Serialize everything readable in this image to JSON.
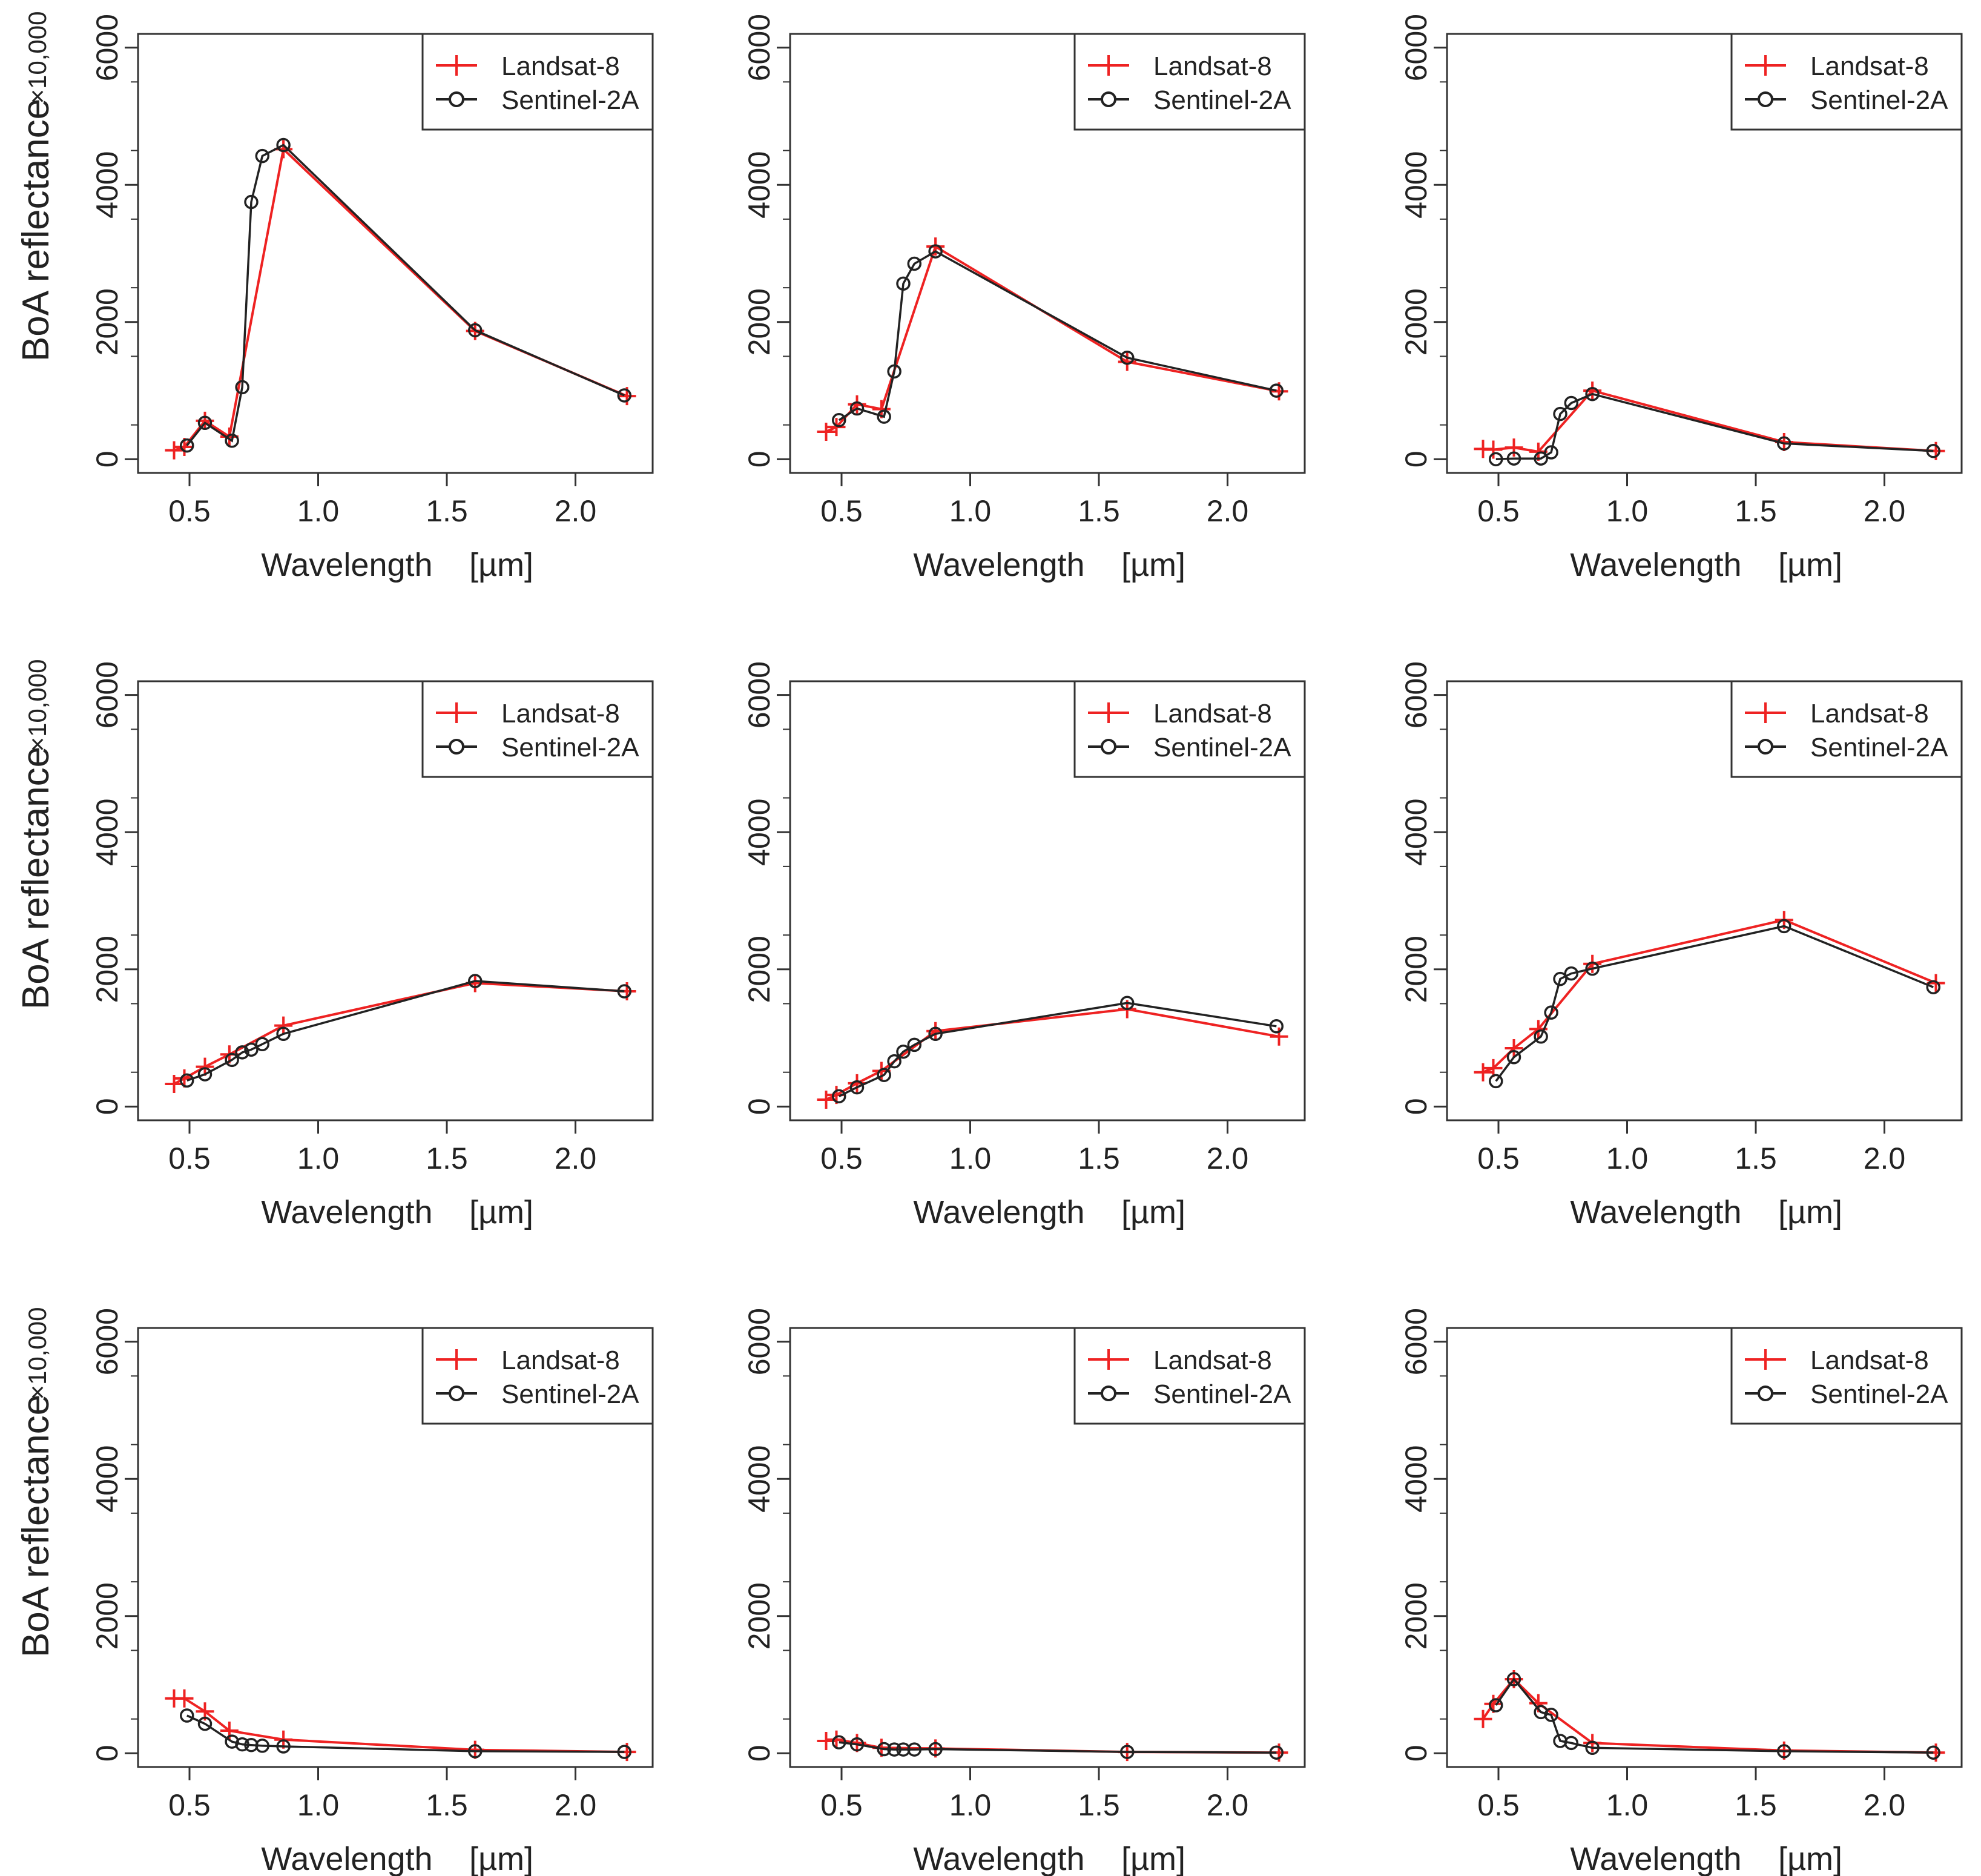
{
  "figure": {
    "ylabel": "BoA reflectance",
    "ylabel_scale": "×10,000",
    "xlabel": "Wavelength",
    "xlabel_unit": "[µm]",
    "legend_items": [
      "Landsat-8",
      "Sentinel-2A"
    ],
    "colors": {
      "landsat": "#ee2222",
      "sentinel": "#222222",
      "axis": "#333333"
    },
    "x_ticks": [
      0.5,
      1.0,
      1.5,
      2.0
    ],
    "x_tick_labels": [
      "0.5",
      "1.0",
      "1.5",
      "2.0"
    ],
    "y_ticks": [
      0,
      2000,
      4000,
      6000
    ],
    "y_tick_labels": [
      "0",
      "2000",
      "4000",
      "6000"
    ]
  },
  "chart_data": [
    {
      "type": "line",
      "xlim": [
        0.3,
        2.3
      ],
      "ylim": [
        -200,
        6200
      ],
      "series": [
        {
          "name": "Landsat-8",
          "x": [
            0.44,
            0.48,
            0.56,
            0.655,
            0.865,
            1.61,
            2.2
          ],
          "y": [
            130,
            180,
            560,
            330,
            4520,
            1870,
            920
          ]
        },
        {
          "name": "Sentinel-2A",
          "x": [
            0.49,
            0.56,
            0.665,
            0.705,
            0.74,
            0.783,
            0.865,
            1.61,
            2.19
          ],
          "y": [
            200,
            530,
            270,
            1050,
            3750,
            4420,
            4580,
            1880,
            930
          ]
        }
      ]
    },
    {
      "type": "line",
      "xlim": [
        0.3,
        2.3
      ],
      "ylim": [
        -200,
        6200
      ],
      "series": [
        {
          "name": "Landsat-8",
          "x": [
            0.44,
            0.48,
            0.56,
            0.655,
            0.865,
            1.61,
            2.2
          ],
          "y": [
            400,
            470,
            800,
            730,
            3100,
            1420,
            990
          ]
        },
        {
          "name": "Sentinel-2A",
          "x": [
            0.49,
            0.56,
            0.665,
            0.705,
            0.74,
            0.783,
            0.865,
            1.61,
            2.19
          ],
          "y": [
            570,
            740,
            620,
            1280,
            2560,
            2850,
            3030,
            1480,
            1000
          ]
        }
      ]
    },
    {
      "type": "line",
      "xlim": [
        0.3,
        2.3
      ],
      "ylim": [
        -200,
        6200
      ],
      "series": [
        {
          "name": "Landsat-8",
          "x": [
            0.44,
            0.48,
            0.56,
            0.655,
            0.865,
            1.61,
            2.2
          ],
          "y": [
            150,
            140,
            170,
            110,
            1000,
            250,
            120
          ]
        },
        {
          "name": "Sentinel-2A",
          "x": [
            0.49,
            0.56,
            0.665,
            0.705,
            0.74,
            0.783,
            0.865,
            1.61,
            2.19
          ],
          "y": [
            0,
            10,
            10,
            100,
            660,
            820,
            950,
            230,
            120
          ]
        }
      ]
    },
    {
      "type": "line",
      "xlim": [
        0.3,
        2.3
      ],
      "ylim": [
        -200,
        6200
      ],
      "series": [
        {
          "name": "Landsat-8",
          "x": [
            0.44,
            0.48,
            0.56,
            0.655,
            0.865,
            1.61,
            2.2
          ],
          "y": [
            330,
            410,
            580,
            760,
            1180,
            1800,
            1680
          ]
        },
        {
          "name": "Sentinel-2A",
          "x": [
            0.49,
            0.56,
            0.665,
            0.705,
            0.74,
            0.783,
            0.865,
            1.61,
            2.19
          ],
          "y": [
            380,
            470,
            680,
            790,
            830,
            910,
            1060,
            1830,
            1680
          ]
        }
      ]
    },
    {
      "type": "line",
      "xlim": [
        0.3,
        2.3
      ],
      "ylim": [
        -200,
        6200
      ],
      "series": [
        {
          "name": "Landsat-8",
          "x": [
            0.44,
            0.48,
            0.56,
            0.655,
            0.865,
            1.61,
            2.2
          ],
          "y": [
            100,
            170,
            340,
            520,
            1100,
            1420,
            1020
          ]
        },
        {
          "name": "Sentinel-2A",
          "x": [
            0.49,
            0.56,
            0.665,
            0.705,
            0.74,
            0.783,
            0.865,
            1.61,
            2.19
          ],
          "y": [
            150,
            280,
            460,
            660,
            800,
            900,
            1060,
            1510,
            1170
          ]
        }
      ]
    },
    {
      "type": "line",
      "xlim": [
        0.3,
        2.3
      ],
      "ylim": [
        -200,
        6200
      ],
      "series": [
        {
          "name": "Landsat-8",
          "x": [
            0.44,
            0.48,
            0.56,
            0.655,
            0.865,
            1.61,
            2.2
          ],
          "y": [
            500,
            560,
            850,
            1130,
            2080,
            2720,
            1800
          ]
        },
        {
          "name": "Sentinel-2A",
          "x": [
            0.49,
            0.56,
            0.665,
            0.705,
            0.74,
            0.783,
            0.865,
            1.61,
            2.19
          ],
          "y": [
            370,
            720,
            1020,
            1370,
            1860,
            1940,
            2010,
            2630,
            1740
          ]
        }
      ]
    },
    {
      "type": "line",
      "xlim": [
        0.3,
        2.3
      ],
      "ylim": [
        -200,
        6200
      ],
      "series": [
        {
          "name": "Landsat-8",
          "x": [
            0.44,
            0.48,
            0.56,
            0.655,
            0.865,
            1.61,
            2.2
          ],
          "y": [
            800,
            800,
            610,
            330,
            200,
            50,
            20
          ]
        },
        {
          "name": "Sentinel-2A",
          "x": [
            0.49,
            0.56,
            0.665,
            0.705,
            0.74,
            0.783,
            0.865,
            1.61,
            2.19
          ],
          "y": [
            550,
            430,
            170,
            130,
            120,
            110,
            100,
            30,
            20
          ]
        }
      ]
    },
    {
      "type": "line",
      "xlim": [
        0.3,
        2.3
      ],
      "ylim": [
        -200,
        6200
      ],
      "series": [
        {
          "name": "Landsat-8",
          "x": [
            0.44,
            0.48,
            0.56,
            0.655,
            0.865,
            1.61,
            2.2
          ],
          "y": [
            180,
            200,
            150,
            80,
            70,
            20,
            10
          ]
        },
        {
          "name": "Sentinel-2A",
          "x": [
            0.49,
            0.56,
            0.665,
            0.705,
            0.74,
            0.783,
            0.865,
            1.61,
            2.19
          ],
          "y": [
            160,
            130,
            60,
            55,
            55,
            55,
            60,
            20,
            10
          ]
        }
      ]
    },
    {
      "type": "line",
      "xlim": [
        0.3,
        2.3
      ],
      "ylim": [
        -200,
        6200
      ],
      "series": [
        {
          "name": "Landsat-8",
          "x": [
            0.44,
            0.48,
            0.56,
            0.655,
            0.865,
            1.61,
            2.2
          ],
          "y": [
            500,
            720,
            1080,
            730,
            150,
            40,
            10
          ]
        },
        {
          "name": "Sentinel-2A",
          "x": [
            0.49,
            0.56,
            0.665,
            0.705,
            0.74,
            0.783,
            0.865,
            1.61,
            2.19
          ],
          "y": [
            700,
            1080,
            600,
            560,
            180,
            150,
            80,
            30,
            10
          ]
        }
      ]
    }
  ]
}
